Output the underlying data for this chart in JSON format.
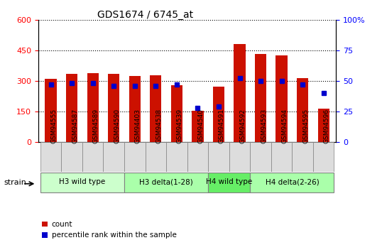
{
  "title": "GDS1674 / 6745_at",
  "samples": [
    "GSM94555",
    "GSM94587",
    "GSM94589",
    "GSM94590",
    "GSM94403",
    "GSM94538",
    "GSM94539",
    "GSM94540",
    "GSM94591",
    "GSM94592",
    "GSM94593",
    "GSM94594",
    "GSM94595",
    "GSM94596"
  ],
  "count_values": [
    310,
    335,
    338,
    335,
    325,
    328,
    280,
    155,
    270,
    480,
    430,
    425,
    315,
    165
  ],
  "percentile_values": [
    47,
    48,
    48,
    46,
    46,
    46,
    47,
    28,
    29,
    52,
    50,
    50,
    47,
    40
  ],
  "bar_color": "#CC1100",
  "dot_color": "#0000CC",
  "left_ylim": [
    0,
    600
  ],
  "right_ylim": [
    0,
    100
  ],
  "left_yticks": [
    0,
    150,
    300,
    450,
    600
  ],
  "right_yticks": [
    0,
    25,
    50,
    75,
    100
  ],
  "right_yticklabels": [
    "0",
    "25",
    "50",
    "75",
    "100%"
  ],
  "groups": [
    {
      "label": "H3 wild type",
      "start": 0,
      "end": 4,
      "color": "#CCFFCC"
    },
    {
      "label": "H3 delta(1-28)",
      "start": 4,
      "end": 8,
      "color": "#AAFFAA"
    },
    {
      "label": "H4 wild type",
      "start": 8,
      "end": 10,
      "color": "#66EE66"
    },
    {
      "label": "H4 delta(2-26)",
      "start": 10,
      "end": 14,
      "color": "#AAFFAA"
    }
  ],
  "strain_label": "strain",
  "legend_count_label": "count",
  "legend_percentile_label": "percentile rank within the sample",
  "bar_width": 0.55,
  "tick_bg_color": "#DDDDDD",
  "background_color": "#FFFFFF"
}
